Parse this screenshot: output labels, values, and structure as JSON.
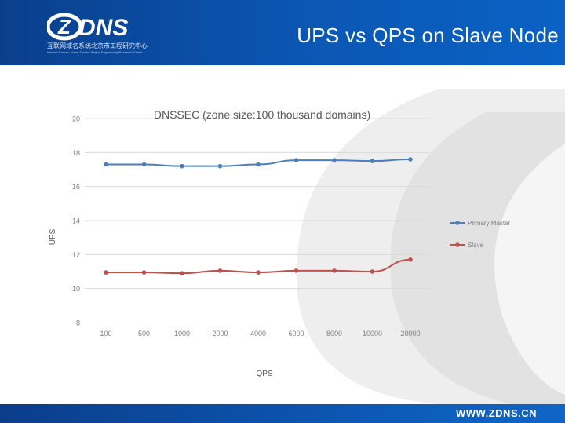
{
  "header": {
    "logo_text": "ZDNS",
    "logo_sub_cn": "互联网域名系统北京市工程研究中心",
    "logo_sub_en": "Internet Domain Name System Beijing Engineering Research Center",
    "title": "UPS vs QPS on Slave Node"
  },
  "footer": {
    "url": "WWW.ZDNS.CN"
  },
  "colors": {
    "primary": "#4a7fbd",
    "slave": "#c0504d",
    "brand": "#0b57b4"
  },
  "chart_data": {
    "type": "line",
    "title": "DNSSEC (zone size:100 thousand domains)",
    "xlabel": "QPS",
    "ylabel": "UPS",
    "categories": [
      "100",
      "500",
      "1000",
      "2000",
      "4000",
      "6000",
      "8000",
      "10000",
      "20000"
    ],
    "ylim": [
      8,
      20
    ],
    "yticks": [
      "8",
      "10",
      "12",
      "14",
      "16",
      "18",
      "20"
    ],
    "grid": true,
    "legend": "right",
    "series": [
      {
        "name": "Primary Master",
        "values": [
          17.3,
          17.3,
          17.2,
          17.2,
          17.3,
          17.55,
          17.55,
          17.5,
          17.6
        ]
      },
      {
        "name": "Slave",
        "values": [
          10.95,
          10.95,
          10.9,
          11.05,
          10.95,
          11.05,
          11.05,
          11.0,
          11.7
        ]
      }
    ]
  }
}
